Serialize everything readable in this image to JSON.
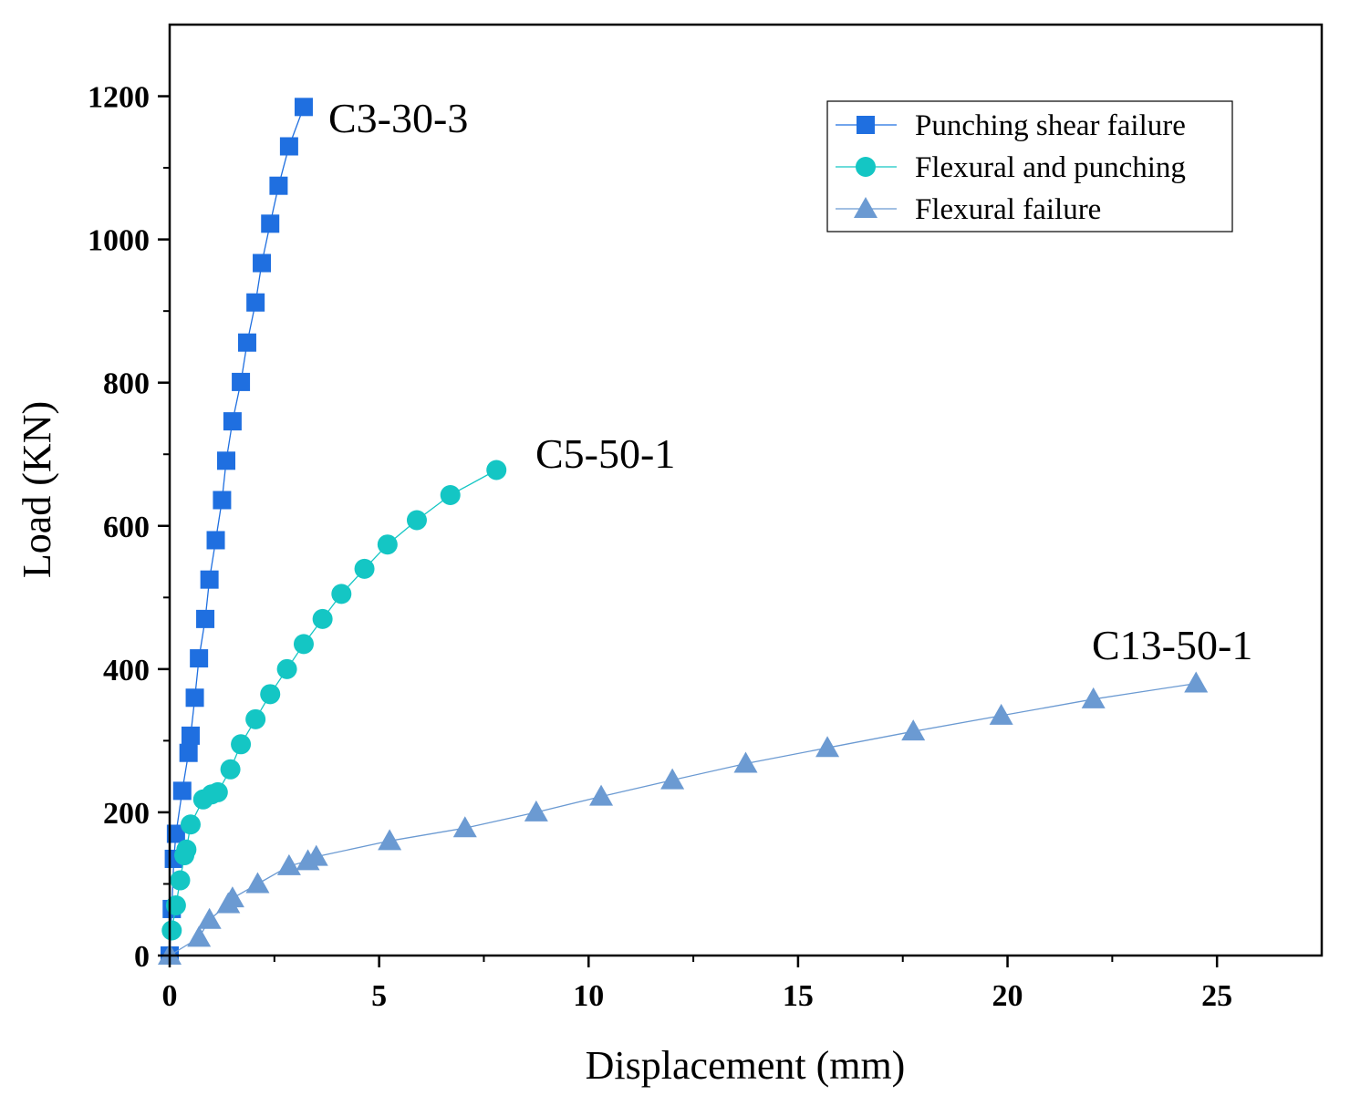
{
  "chart_data": {
    "type": "line",
    "title": "",
    "xlabel": "Displacement (mm)",
    "ylabel": "Load (KN)",
    "xlim": [
      0,
      27.5
    ],
    "ylim": [
      0,
      1300
    ],
    "x_ticks": [
      0,
      5,
      10,
      15,
      20,
      25
    ],
    "x_tick_labels": [
      "0",
      "5",
      "10",
      "15",
      "20",
      "25"
    ],
    "x_minor_ticks": [
      2.5,
      7.5,
      12.5,
      17.5,
      22.5
    ],
    "y_ticks": [
      0,
      200,
      400,
      600,
      800,
      1000,
      1200
    ],
    "y_tick_labels": [
      "0",
      "200",
      "400",
      "600",
      "800",
      "1000",
      "1200"
    ],
    "y_minor_ticks": [
      100,
      300,
      500,
      700,
      900,
      1100
    ],
    "grid": false,
    "legend_position": "top-right",
    "series": [
      {
        "name": "Punching shear failure",
        "marker": "square",
        "color": "#1f6fe0",
        "annotation": "C3-30-3",
        "x": [
          0.0,
          0.05,
          0.1,
          0.15,
          0.3,
          0.45,
          0.5,
          0.6,
          0.7,
          0.85,
          0.95,
          1.1,
          1.25,
          1.35,
          1.5,
          1.7,
          1.85,
          2.05,
          2.2,
          2.4,
          2.6,
          2.85,
          3.2
        ],
        "y": [
          0,
          65,
          135,
          170,
          230,
          283,
          307,
          360,
          415,
          470,
          525,
          580,
          636,
          691,
          746,
          801,
          856,
          912,
          967,
          1022,
          1075,
          1130,
          1185
        ]
      },
      {
        "name": "Flexural and punching",
        "marker": "circle",
        "color": "#14c6c4",
        "annotation": "C5-50-1",
        "x": [
          0.05,
          0.15,
          0.25,
          0.35,
          0.4,
          0.5,
          0.8,
          1.0,
          1.15,
          1.45,
          1.7,
          2.05,
          2.4,
          2.8,
          3.2,
          3.65,
          4.1,
          4.65,
          5.2,
          5.9,
          6.7,
          7.8
        ],
        "y": [
          35,
          70,
          105,
          140,
          148,
          183,
          218,
          225,
          228,
          260,
          295,
          330,
          365,
          400,
          435,
          470,
          505,
          540,
          574,
          608,
          643,
          678
        ]
      },
      {
        "name": "Flexural failure",
        "marker": "triangle",
        "color": "#6b9ad2",
        "annotation": "C13-50-1",
        "x": [
          0.0,
          0.7,
          0.95,
          1.4,
          1.5,
          2.1,
          2.85,
          3.3,
          3.5,
          5.25,
          7.05,
          8.75,
          10.3,
          12.0,
          13.75,
          15.7,
          17.75,
          19.85,
          22.05,
          24.5
        ],
        "y": [
          0,
          25,
          50,
          72,
          80,
          100,
          125,
          132,
          138,
          160,
          178,
          200,
          222,
          245,
          268,
          290,
          313,
          335,
          358,
          380
        ]
      }
    ]
  }
}
